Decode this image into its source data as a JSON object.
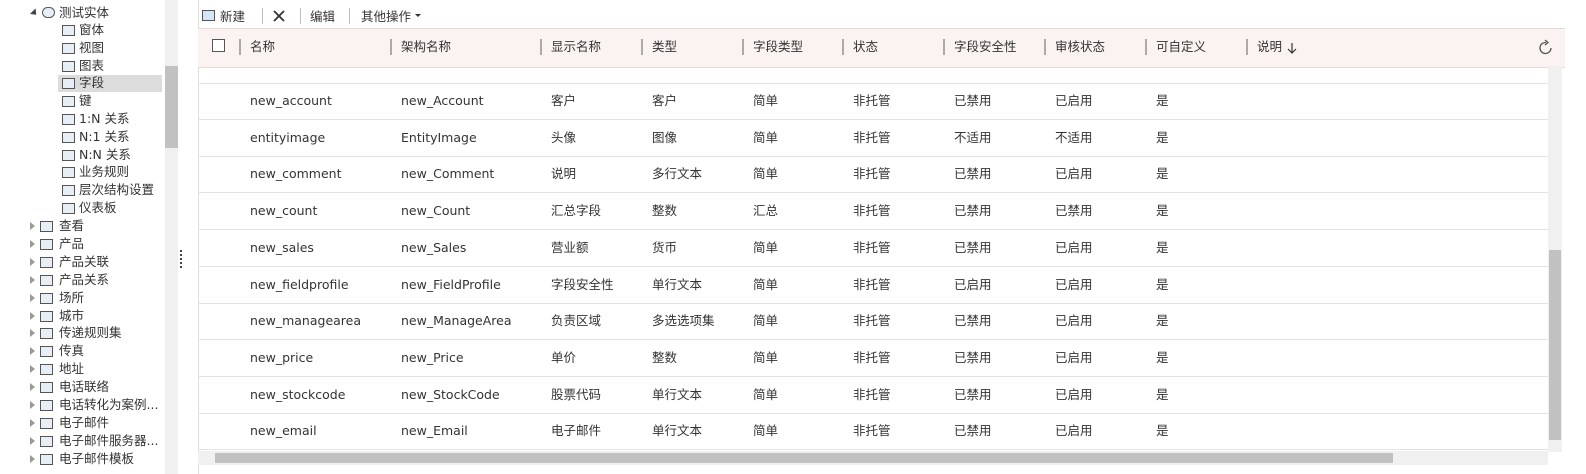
{
  "toolbar": {
    "new": "新建",
    "edit": "编辑",
    "more": "其他操作"
  },
  "tree": {
    "entity": "测试实体",
    "children": [
      "窗体",
      "视图",
      "图表",
      "字段",
      "键",
      "1:N 关系",
      "N:1 关系",
      "N:N 关系",
      "业务规则",
      "层次结构设置",
      "仪表板"
    ],
    "selected": 3,
    "items": [
      "查看",
      "产品",
      "产品关联",
      "产品关系",
      "场所",
      "城市",
      "传递规则集",
      "传真",
      "地址",
      "电话联络",
      "电话转化为案例...",
      "电子邮件",
      "电子邮件服务器...",
      "电子邮件模板"
    ]
  },
  "table": {
    "columns": [
      "名称",
      "架构名称",
      "显示名称",
      "类型",
      "字段类型",
      "状态",
      "字段安全性",
      "审核状态",
      "可自定义",
      "说明"
    ],
    "rows": [
      [
        "new_account",
        "new_Account",
        "客户",
        "客户",
        "简单",
        "非托管",
        "已禁用",
        "已启用",
        "是"
      ],
      [
        "entityimage",
        "EntityImage",
        "头像",
        "图像",
        "简单",
        "非托管",
        "不适用",
        "不适用",
        "是"
      ],
      [
        "new_comment",
        "new_Comment",
        "说明",
        "多行文本",
        "简单",
        "非托管",
        "已禁用",
        "已启用",
        "是"
      ],
      [
        "new_count",
        "new_Count",
        "汇总字段",
        "整数",
        "汇总",
        "非托管",
        "已禁用",
        "已禁用",
        "是"
      ],
      [
        "new_sales",
        "new_Sales",
        "营业额",
        "货币",
        "简单",
        "非托管",
        "已禁用",
        "已启用",
        "是"
      ],
      [
        "new_fieldprofile",
        "new_FieldProfile",
        "字段安全性",
        "单行文本",
        "简单",
        "非托管",
        "已启用",
        "已启用",
        "是"
      ],
      [
        "new_managearea",
        "new_ManageArea",
        "负责区域",
        "多选选项集",
        "简单",
        "非托管",
        "已禁用",
        "已启用",
        "是"
      ],
      [
        "new_price",
        "new_Price",
        "单价",
        "整数",
        "简单",
        "非托管",
        "已禁用",
        "已启用",
        "是"
      ],
      [
        "new_stockcode",
        "new_StockCode",
        "股票代码",
        "单行文本",
        "简单",
        "非托管",
        "已禁用",
        "已启用",
        "是"
      ],
      [
        "new_email",
        "new_Email",
        "电子邮件",
        "单行文本",
        "简单",
        "非托管",
        "已禁用",
        "已启用",
        "是"
      ]
    ]
  }
}
